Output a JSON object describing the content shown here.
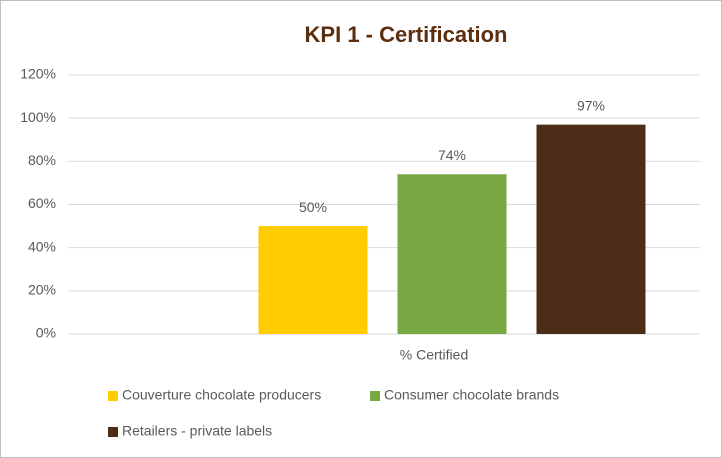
{
  "chart_data": {
    "type": "bar",
    "title": "KPI 1 - Certification",
    "categories": [
      "% Certified"
    ],
    "series": [
      {
        "name": "Couverture chocolate producers",
        "color": "#ffcc00",
        "values": [
          50
        ],
        "value_labels": [
          "50%"
        ]
      },
      {
        "name": "Consumer chocolate brands",
        "color": "#77a843",
        "values": [
          74
        ],
        "value_labels": [
          "74%"
        ]
      },
      {
        "name": "Retailers - private labels",
        "color": "#4d2c18",
        "values": [
          97
        ],
        "value_labels": [
          "97%"
        ]
      }
    ],
    "ylim": [
      0,
      120
    ],
    "yticks": [
      {
        "value": 0,
        "label": "0%"
      },
      {
        "value": 20,
        "label": "20%"
      },
      {
        "value": 40,
        "label": "40%"
      },
      {
        "value": 60,
        "label": "60%"
      },
      {
        "value": 80,
        "label": "80%"
      },
      {
        "value": 100,
        "label": "100%"
      },
      {
        "value": 120,
        "label": "120%"
      }
    ],
    "grid": true,
    "legend": "bottom"
  }
}
